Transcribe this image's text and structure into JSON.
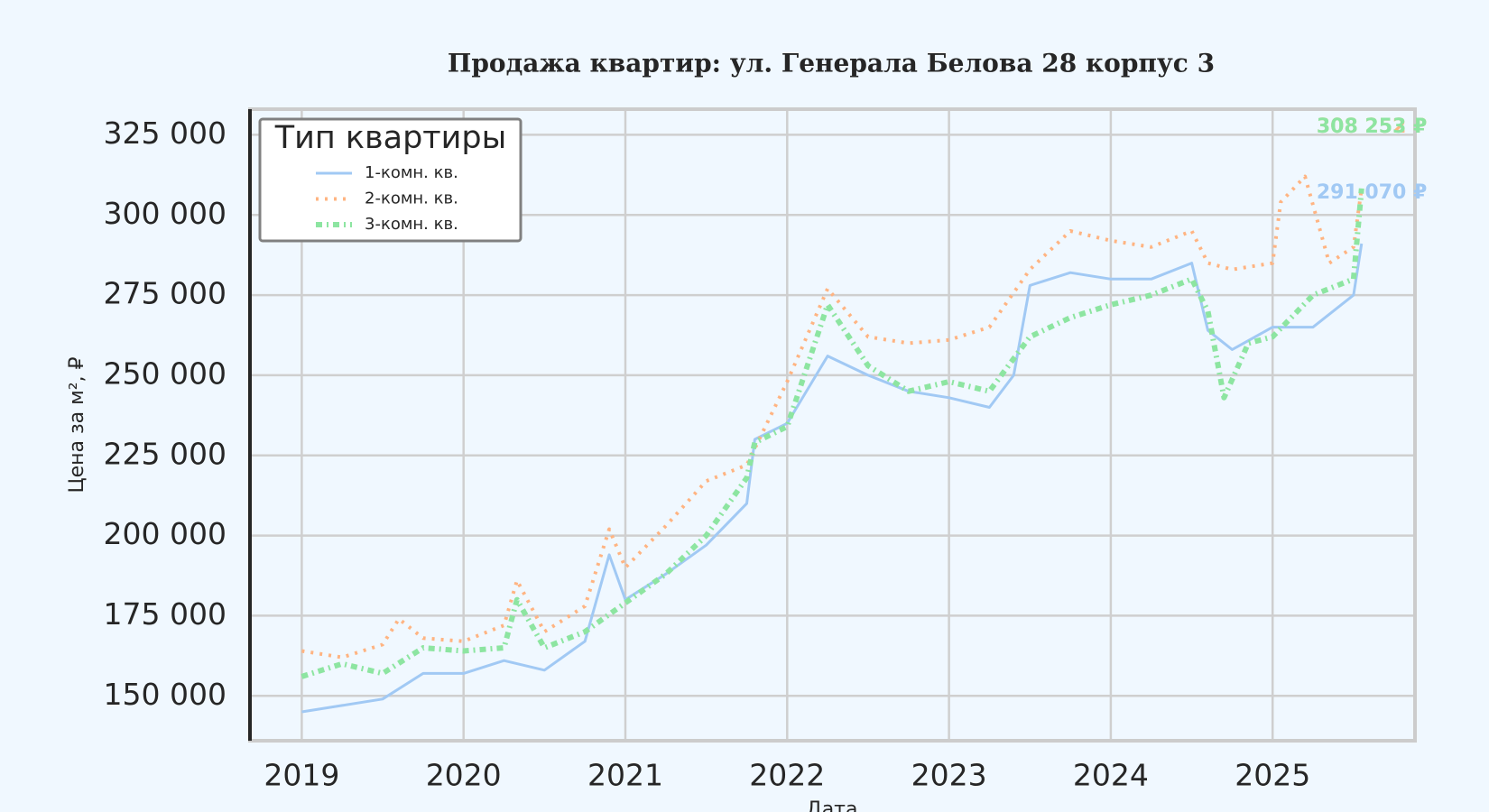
{
  "chart_data": {
    "type": "line",
    "title": "Продажа квартир: ул. Генерала Белова 28 корпус 3",
    "x_label": "Дата",
    "y_label": "Цена за м², ₽",
    "legend_title": "Тип квартиры",
    "legend": "upper left",
    "grid": true,
    "xlim": [
      2018.68,
      2025.88
    ],
    "xticks": [
      2019,
      2020,
      2021,
      2022,
      2023,
      2024,
      2025
    ],
    "ylim": [
      136000,
      333000
    ],
    "yticks": [
      {
        "value": 150000,
        "label": "150 000"
      },
      {
        "value": 175000,
        "label": "175 000"
      },
      {
        "value": 200000,
        "label": "200 000"
      },
      {
        "value": 225000,
        "label": "225 000"
      },
      {
        "value": 250000,
        "label": "250 000"
      },
      {
        "value": 275000,
        "label": "275 000"
      },
      {
        "value": 300000,
        "label": "300 000"
      },
      {
        "value": 325000,
        "label": "325 000"
      }
    ],
    "series": [
      {
        "name": "1-комн. кв.",
        "color": "#a1c9f4",
        "linestyle": "solid",
        "x": [
          2019.0,
          2019.25,
          2019.5,
          2019.75,
          2020.0,
          2020.25,
          2020.5,
          2020.75,
          2020.9,
          2021.0,
          2021.25,
          2021.5,
          2021.75,
          2021.8,
          2022.0,
          2022.25,
          2022.5,
          2022.75,
          2023.0,
          2023.25,
          2023.4,
          2023.5,
          2023.75,
          2024.0,
          2024.25,
          2024.5,
          2024.6,
          2024.75,
          2025.0,
          2025.25,
          2025.5,
          2025.55
        ],
        "values": [
          145000,
          147000,
          149000,
          157000,
          157000,
          161000,
          158000,
          167000,
          194000,
          180000,
          188000,
          197000,
          210000,
          230000,
          235000,
          256000,
          250000,
          245000,
          243000,
          240000,
          250000,
          278000,
          282000,
          280000,
          280000,
          285000,
          264000,
          258000,
          265000,
          265000,
          275000,
          291070
        ],
        "value_labels": [
          null,
          null,
          null,
          null,
          null,
          null,
          null,
          null,
          null,
          null,
          null,
          null,
          null,
          null,
          null,
          null,
          null,
          null,
          null,
          null,
          null,
          null,
          null,
          null,
          null,
          null,
          null,
          null,
          null,
          null,
          null,
          "291 070 ₽"
        ]
      },
      {
        "name": "2-комн. кв.",
        "color": "#ffb482",
        "linestyle": "dotted",
        "x": [
          2019.0,
          2019.25,
          2019.5,
          2019.6,
          2019.75,
          2020.0,
          2020.25,
          2020.33,
          2020.5,
          2020.75,
          2020.9,
          2021.0,
          2021.25,
          2021.5,
          2021.75,
          2022.0,
          2022.25,
          2022.5,
          2022.75,
          2023.0,
          2023.25,
          2023.5,
          2023.75,
          2024.0,
          2024.25,
          2024.5,
          2024.6,
          2024.75,
          2025.0,
          2025.05,
          2025.2,
          2025.35,
          2025.5,
          2025.55
        ],
        "values": [
          164000,
          162000,
          166000,
          174000,
          168000,
          167000,
          172000,
          186000,
          170000,
          178000,
          202000,
          190000,
          203000,
          217000,
          222000,
          248000,
          277000,
          262000,
          260000,
          261000,
          265000,
          283000,
          295000,
          292000,
          290000,
          295000,
          285000,
          283000,
          285000,
          304000,
          312000,
          285000,
          290000,
          308252
        ],
        "value_labels": [
          null,
          null,
          null,
          null,
          null,
          null,
          null,
          null,
          null,
          null,
          null,
          null,
          null,
          null,
          null,
          null,
          null,
          null,
          null,
          null,
          null,
          null,
          null,
          null,
          null,
          null,
          null,
          null,
          null,
          null,
          null,
          null,
          null,
          "308 252 ₽"
        ]
      },
      {
        "name": "3-комн. кв.",
        "color": "#8de5a1",
        "linestyle": "dashdot",
        "x": [
          2019.0,
          2019.25,
          2019.5,
          2019.75,
          2020.0,
          2020.25,
          2020.33,
          2020.5,
          2020.75,
          2021.0,
          2021.25,
          2021.5,
          2021.75,
          2021.8,
          2022.0,
          2022.25,
          2022.5,
          2022.75,
          2023.0,
          2023.25,
          2023.5,
          2023.75,
          2024.0,
          2024.25,
          2024.5,
          2024.6,
          2024.7,
          2024.85,
          2025.0,
          2025.25,
          2025.5,
          2025.55
        ],
        "values": [
          156000,
          160000,
          157000,
          165000,
          164000,
          165000,
          180000,
          165000,
          170000,
          179000,
          188000,
          200000,
          218000,
          229000,
          234000,
          272000,
          253000,
          245000,
          248000,
          245000,
          262000,
          268000,
          272000,
          275000,
          280000,
          270000,
          243000,
          260000,
          262000,
          275000,
          280000,
          308253
        ],
        "value_labels": [
          null,
          null,
          null,
          null,
          null,
          null,
          null,
          null,
          null,
          null,
          null,
          null,
          null,
          null,
          null,
          null,
          null,
          null,
          null,
          null,
          null,
          null,
          null,
          null,
          null,
          null,
          null,
          null,
          null,
          null,
          null,
          "308 253 ₽"
        ]
      }
    ]
  }
}
